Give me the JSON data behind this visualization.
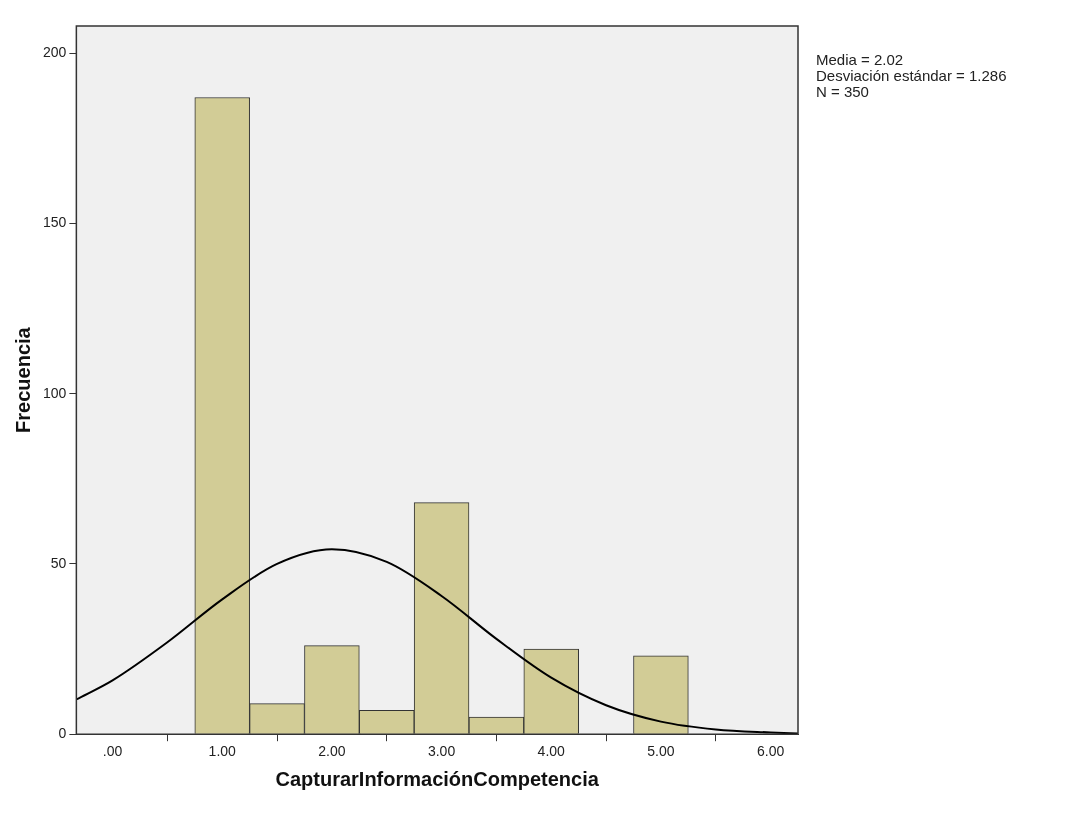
{
  "chart_data": {
    "type": "histogram",
    "xlabel": "CapturarInformaciónCompetencia",
    "ylabel": "Frecuencia",
    "bins": [
      0.75,
      1.25,
      1.75,
      2.25,
      2.75,
      3.25,
      3.75,
      4.25,
      4.75,
      5.25
    ],
    "values": [
      187,
      9,
      26,
      7,
      68,
      5,
      25,
      0,
      23
    ],
    "color": "#d2cc96",
    "series": [
      {
        "type": "line",
        "color": "#000000",
        "x": [
          -0.33,
          0,
          0.5,
          1,
          1.5,
          2,
          2.5,
          3,
          3.5,
          4,
          4.5,
          5,
          5.5,
          6,
          6.25
        ],
        "values": [
          10.2,
          15.8,
          27,
          39.6,
          50,
          54.3,
          50.6,
          40.6,
          28,
          16.6,
          8.5,
          3.7,
          1.4,
          0.5,
          0.2
        ]
      }
    ],
    "xlim": [
      -0.33,
      6.25
    ],
    "xticks": [
      {
        "value": 0,
        "label": ".00"
      },
      {
        "value": 1,
        "label": "1.00"
      },
      {
        "value": 2,
        "label": "2.00"
      },
      {
        "value": 3,
        "label": "3.00"
      },
      {
        "value": 4,
        "label": "4.00"
      },
      {
        "value": 5,
        "label": "5.00"
      },
      {
        "value": 6,
        "label": "6.00"
      }
    ],
    "ylim": [
      0,
      208
    ],
    "yticks": [
      0,
      50,
      100,
      150,
      200
    ],
    "grid": false,
    "legend": false,
    "annotations": [
      "Media = 2.02",
      "Desviación estándar = 1.286",
      "N = 350"
    ]
  }
}
